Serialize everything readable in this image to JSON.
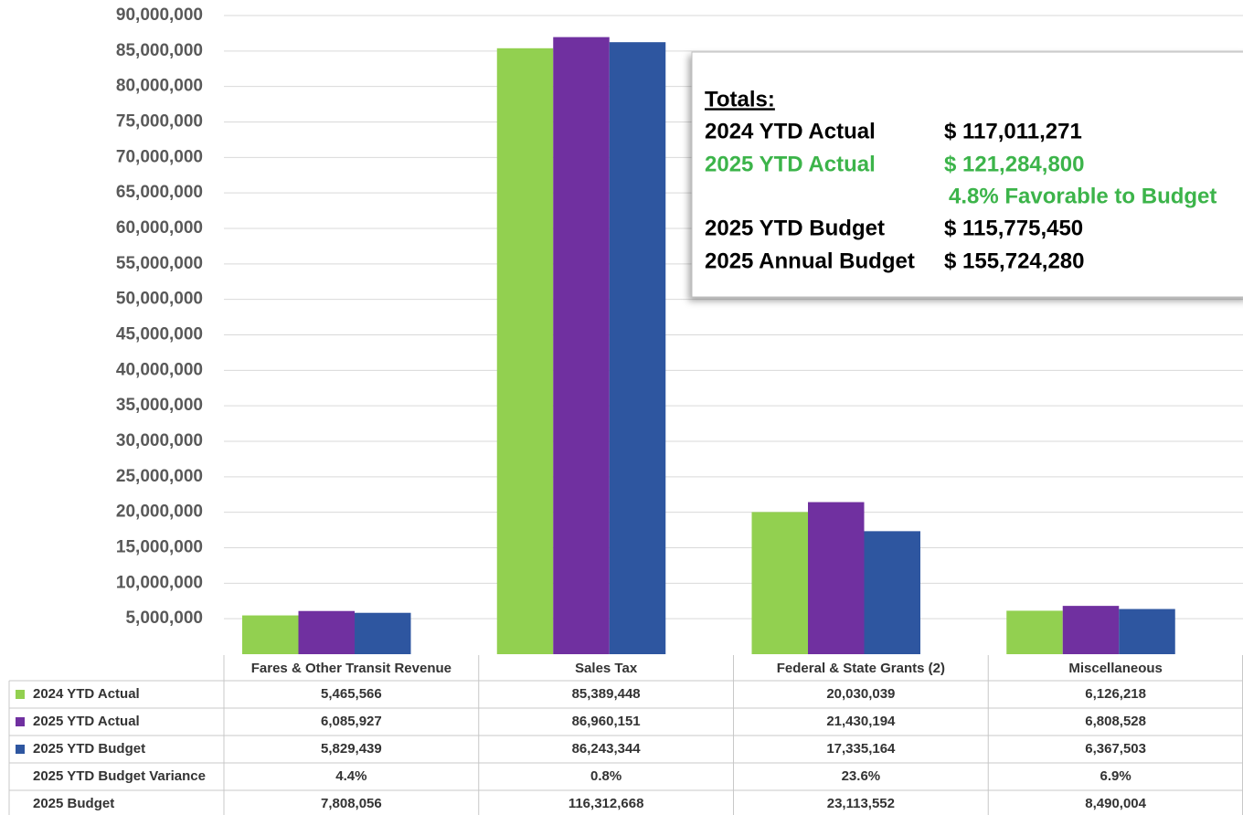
{
  "chart_data": {
    "type": "bar",
    "categories": [
      "Fares & Other Transit Revenue",
      "Sales Tax",
      "Federal & State Grants (2)",
      "Miscellaneous"
    ],
    "series": [
      {
        "name": "2024 YTD Actual",
        "color": "#92d050",
        "values": [
          5465566,
          85389448,
          20030039,
          6126218
        ],
        "value_labels": [
          "5,465,566",
          "85,389,448",
          "20,030,039",
          "6,126,218"
        ]
      },
      {
        "name": "2025 YTD Actual",
        "color": "#7030a0",
        "values": [
          6085927,
          86960151,
          21430194,
          6808528
        ],
        "value_labels": [
          "6,085,927",
          "86,960,151",
          "21,430,194",
          "6,808,528"
        ]
      },
      {
        "name": "2025 YTD Budget",
        "color": "#2e56a0",
        "values": [
          5829439,
          86243344,
          17335164,
          6367503
        ],
        "value_labels": [
          "5,829,439",
          "86,243,344",
          "17,335,164",
          "6,367,503"
        ]
      }
    ],
    "rows": [
      {
        "name": "2025 YTD Budget Variance",
        "values": [
          "4.4%",
          "0.8%",
          "23.6%",
          "6.9%"
        ]
      },
      {
        "name": "2025 Budget",
        "values": [
          "7,808,056",
          "116,312,668",
          "23,113,552",
          "8,490,004"
        ]
      }
    ],
    "ylim": [
      0,
      90000000
    ],
    "yticks": [
      {
        "value": 5000000,
        "label": "5,000,000"
      },
      {
        "value": 10000000,
        "label": "10,000,000"
      },
      {
        "value": 15000000,
        "label": "15,000,000"
      },
      {
        "value": 20000000,
        "label": "20,000,000"
      },
      {
        "value": 25000000,
        "label": "25,000,000"
      },
      {
        "value": 30000000,
        "label": "30,000,000"
      },
      {
        "value": 35000000,
        "label": "35,000,000"
      },
      {
        "value": 40000000,
        "label": "40,000,000"
      },
      {
        "value": 45000000,
        "label": "45,000,000"
      },
      {
        "value": 50000000,
        "label": "50,000,000"
      },
      {
        "value": 55000000,
        "label": "55,000,000"
      },
      {
        "value": 60000000,
        "label": "60,000,000"
      },
      {
        "value": 65000000,
        "label": "65,000,000"
      },
      {
        "value": 70000000,
        "label": "70,000,000"
      },
      {
        "value": 75000000,
        "label": "75,000,000"
      },
      {
        "value": 80000000,
        "label": "80,000,000"
      },
      {
        "value": 85000000,
        "label": "85,000,000"
      },
      {
        "value": 90000000,
        "label": "90,000,000"
      }
    ],
    "grid": true,
    "totals": {
      "title": "Totals:",
      "rows": [
        {
          "label": "2024 YTD Actual",
          "value": "$ 117,011,271",
          "color": "#000000"
        },
        {
          "label": "2025 YTD Actual",
          "value": "$ 121,284,800",
          "color": "#3cb44a"
        },
        {
          "label": "2025 YTD Budget",
          "value": "$ 115,775,450",
          "color": "#000000"
        },
        {
          "label": "2025 Annual Budget",
          "value": "$ 155,724,280",
          "color": "#000000"
        }
      ],
      "note": "4.8% Favorable to Budget",
      "note_color": "#3cb44a"
    }
  }
}
